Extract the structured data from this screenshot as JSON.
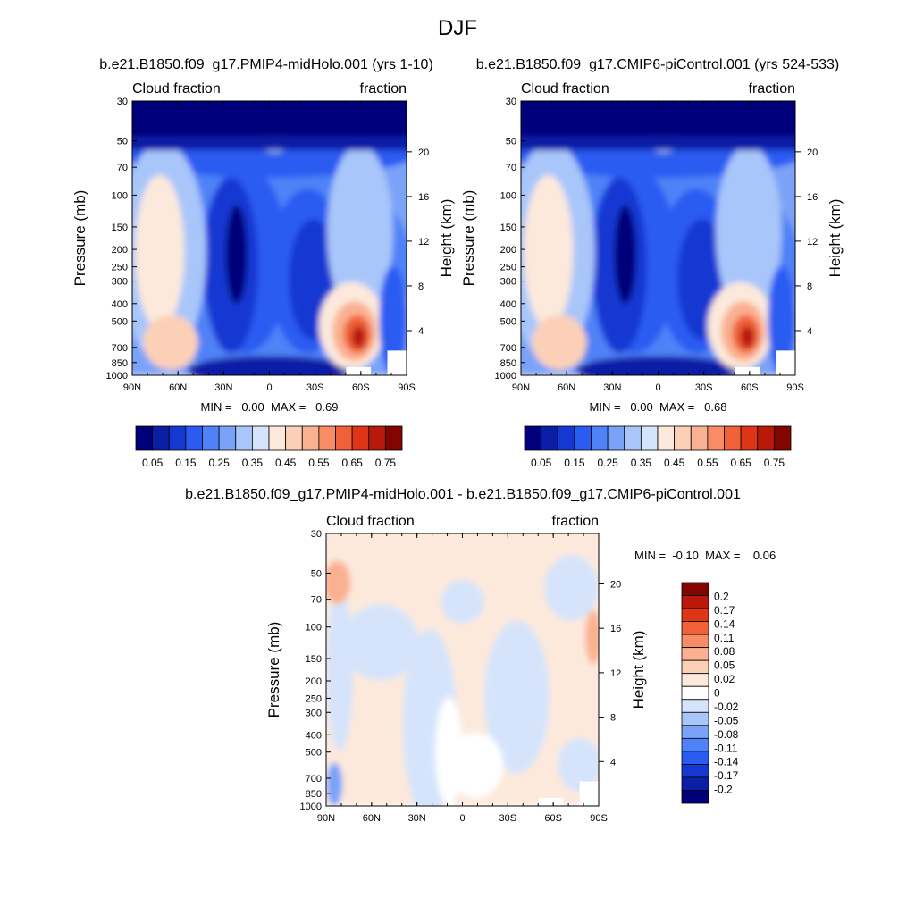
{
  "page": {
    "title": "DJF",
    "colors": {
      "background": "#ffffff",
      "text": "#000000"
    }
  },
  "chart_data": [
    {
      "type": "heatmap",
      "title": "b.e21.B1850.f09_g17.PMIP4-midHolo.001 (yrs 1-10)",
      "left_string": "Cloud fraction",
      "right_string": "fraction",
      "xlabel": "",
      "ylabel": "Pressure (mb)",
      "y2label": "Height (km)",
      "x_ticks": [
        "90N",
        "60N",
        "30N",
        "0",
        "30S",
        "60S",
        "90S"
      ],
      "y_ticks": [
        30,
        50,
        70,
        100,
        150,
        200,
        250,
        300,
        400,
        500,
        700,
        850,
        1000
      ],
      "y2_ticks": [
        20,
        16,
        12,
        8,
        4
      ],
      "ylim": [
        1000,
        30
      ],
      "y_scale": "log",
      "min_max_text": "MIN =   0.00  MAX =   0.69",
      "colorbar": {
        "orientation": "horizontal",
        "labels": [
          "0.05",
          "0.15",
          "0.25",
          "0.35",
          "0.45",
          "0.55",
          "0.65",
          "0.75"
        ],
        "colors": [
          "#00007a",
          "#0b1fa6",
          "#1538d2",
          "#2b5cf2",
          "#4f82f7",
          "#7aa3f8",
          "#a9c6fa",
          "#d5e4fb",
          "#fde9dc",
          "#fcd0b7",
          "#fab191",
          "#f88c66",
          "#f06039",
          "#dd3516",
          "#b8190b",
          "#830500"
        ]
      }
    },
    {
      "type": "heatmap",
      "title": "b.e21.B1850.f09_g17.CMIP6-piControl.001 (yrs 524-533)",
      "left_string": "Cloud fraction",
      "right_string": "fraction",
      "xlabel": "",
      "ylabel": "Pressure (mb)",
      "y2label": "Height (km)",
      "x_ticks": [
        "90N",
        "60N",
        "30N",
        "0",
        "30S",
        "60S",
        "90S"
      ],
      "y_ticks": [
        30,
        50,
        70,
        100,
        150,
        200,
        250,
        300,
        400,
        500,
        700,
        850,
        1000
      ],
      "y2_ticks": [
        20,
        16,
        12,
        8,
        4
      ],
      "ylim": [
        1000,
        30
      ],
      "y_scale": "log",
      "min_max_text": "MIN =   0.00  MAX =   0.68",
      "colorbar": {
        "orientation": "horizontal",
        "labels": [
          "0.05",
          "0.15",
          "0.25",
          "0.35",
          "0.45",
          "0.55",
          "0.65",
          "0.75"
        ],
        "colors": [
          "#00007a",
          "#0b1fa6",
          "#1538d2",
          "#2b5cf2",
          "#4f82f7",
          "#7aa3f8",
          "#a9c6fa",
          "#d5e4fb",
          "#fde9dc",
          "#fcd0b7",
          "#fab191",
          "#f88c66",
          "#f06039",
          "#dd3516",
          "#b8190b",
          "#830500"
        ]
      }
    },
    {
      "type": "heatmap",
      "title": "b.e21.B1850.f09_g17.PMIP4-midHolo.001 - b.e21.B1850.f09_g17.CMIP6-piControl.001",
      "left_string": "Cloud fraction",
      "right_string": "fraction",
      "xlabel": "",
      "ylabel": "Pressure (mb)",
      "y2label": "Height (km)",
      "x_ticks": [
        "90N",
        "60N",
        "30N",
        "0",
        "30S",
        "60S",
        "90S"
      ],
      "y_ticks": [
        30,
        50,
        70,
        100,
        150,
        200,
        250,
        300,
        400,
        500,
        700,
        850,
        1000
      ],
      "y2_ticks": [
        20,
        16,
        12,
        8,
        4
      ],
      "ylim": [
        1000,
        30
      ],
      "y_scale": "log",
      "min_max_text": "MIN =  -0.10  MAX =    0.06",
      "colorbar": {
        "orientation": "vertical",
        "labels": [
          "0.2",
          "0.17",
          "0.14",
          "0.11",
          "0.08",
          "0.05",
          "0.02",
          "0",
          "-0.02",
          "-0.05",
          "-0.08",
          "-0.11",
          "-0.14",
          "-0.17",
          "-0.2"
        ],
        "colors": [
          "#830500",
          "#b8190b",
          "#dd3516",
          "#f06039",
          "#f88c66",
          "#fab191",
          "#fcd0b7",
          "#fde9dc",
          "#ffffff",
          "#d5e4fb",
          "#a9c6fa",
          "#7aa3f8",
          "#4f82f7",
          "#2b5cf2",
          "#1538d2",
          "#0b1fa6",
          "#00007a"
        ]
      }
    }
  ]
}
